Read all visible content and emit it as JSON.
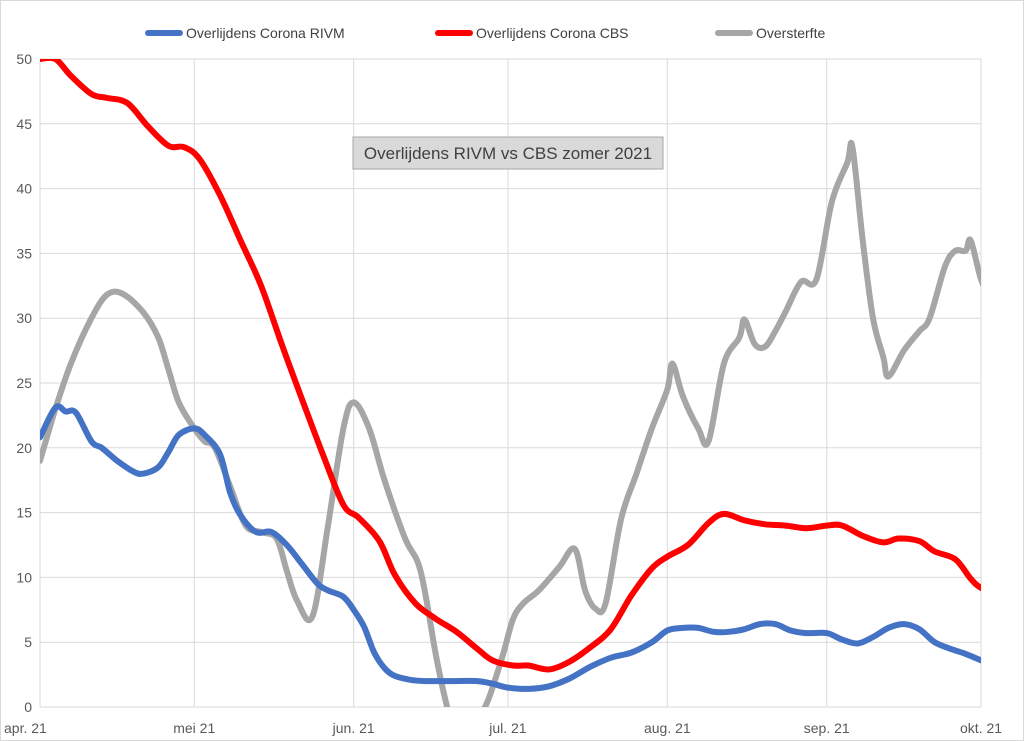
{
  "chart_data": {
    "type": "line",
    "annotation": "Overlijdens RIVM vs CBS zomer 2021",
    "ylim": [
      0,
      50
    ],
    "y_ticks": [
      "0",
      "5",
      "10",
      "15",
      "20",
      "25",
      "30",
      "35",
      "40",
      "45",
      "50"
    ],
    "x_range": [
      "2021-04-01",
      "2021-10-01"
    ],
    "x_ticks": [
      {
        "date": "2021-04-01",
        "label": "apr. 21"
      },
      {
        "date": "2021-05-01",
        "label": "mei 21"
      },
      {
        "date": "2021-06-01",
        "label": "jun. 21"
      },
      {
        "date": "2021-07-01",
        "label": "jul. 21"
      },
      {
        "date": "2021-08-01",
        "label": "aug. 21"
      },
      {
        "date": "2021-09-01",
        "label": "sep. 21"
      },
      {
        "date": "2021-10-01",
        "label": "okt. 21"
      }
    ],
    "grid": "vertical and horizontal",
    "legend_position": "top",
    "series": [
      {
        "name": "Overlijdens Corona RIVM",
        "color": "#4472c4",
        "points": [
          [
            "2021-04-01",
            20.8
          ],
          [
            "2021-04-04",
            23.1
          ],
          [
            "2021-04-06",
            22.8
          ],
          [
            "2021-04-08",
            22.7
          ],
          [
            "2021-04-11",
            20.5
          ],
          [
            "2021-04-13",
            20.0
          ],
          [
            "2021-04-16",
            19.0
          ],
          [
            "2021-04-19",
            18.2
          ],
          [
            "2021-04-21",
            18.0
          ],
          [
            "2021-04-24",
            18.5
          ],
          [
            "2021-04-26",
            19.7
          ],
          [
            "2021-04-28",
            21.0
          ],
          [
            "2021-05-01",
            21.5
          ],
          [
            "2021-05-03",
            21.0
          ],
          [
            "2021-05-06",
            19.5
          ],
          [
            "2021-05-08",
            16.5
          ],
          [
            "2021-05-10",
            14.8
          ],
          [
            "2021-05-13",
            13.5
          ],
          [
            "2021-05-16",
            13.5
          ],
          [
            "2021-05-19",
            12.5
          ],
          [
            "2021-05-22",
            11.0
          ],
          [
            "2021-05-25",
            9.5
          ],
          [
            "2021-05-27",
            9.0
          ],
          [
            "2021-05-30",
            8.5
          ],
          [
            "2021-06-01",
            7.5
          ],
          [
            "2021-06-03",
            6.2
          ],
          [
            "2021-06-05",
            4.2
          ],
          [
            "2021-06-07",
            3.0
          ],
          [
            "2021-06-09",
            2.4
          ],
          [
            "2021-06-12",
            2.1
          ],
          [
            "2021-06-15",
            2.0
          ],
          [
            "2021-06-20",
            2.0
          ],
          [
            "2021-06-25",
            2.0
          ],
          [
            "2021-06-28",
            1.8
          ],
          [
            "2021-07-01",
            1.5
          ],
          [
            "2021-07-05",
            1.4
          ],
          [
            "2021-07-09",
            1.6
          ],
          [
            "2021-07-13",
            2.2
          ],
          [
            "2021-07-17",
            3.1
          ],
          [
            "2021-07-21",
            3.8
          ],
          [
            "2021-07-25",
            4.2
          ],
          [
            "2021-07-29",
            5.0
          ],
          [
            "2021-08-01",
            5.9
          ],
          [
            "2021-08-04",
            6.1
          ],
          [
            "2021-08-07",
            6.1
          ],
          [
            "2021-08-10",
            5.8
          ],
          [
            "2021-08-13",
            5.8
          ],
          [
            "2021-08-16",
            6.0
          ],
          [
            "2021-08-19",
            6.4
          ],
          [
            "2021-08-22",
            6.4
          ],
          [
            "2021-08-25",
            5.9
          ],
          [
            "2021-08-28",
            5.7
          ],
          [
            "2021-09-01",
            5.7
          ],
          [
            "2021-09-04",
            5.2
          ],
          [
            "2021-09-07",
            4.9
          ],
          [
            "2021-09-10",
            5.4
          ],
          [
            "2021-09-13",
            6.1
          ],
          [
            "2021-09-16",
            6.4
          ],
          [
            "2021-09-19",
            6.0
          ],
          [
            "2021-09-22",
            5.0
          ],
          [
            "2021-09-25",
            4.5
          ],
          [
            "2021-09-28",
            4.1
          ],
          [
            "2021-10-01",
            3.6
          ]
        ]
      },
      {
        "name": "Overlijdens Corona CBS",
        "color": "#ff0000",
        "points": [
          [
            "2021-04-01",
            50.0
          ],
          [
            "2021-04-04",
            50.0
          ],
          [
            "2021-04-07",
            48.7
          ],
          [
            "2021-04-11",
            47.3
          ],
          [
            "2021-04-14",
            47.0
          ],
          [
            "2021-04-18",
            46.6
          ],
          [
            "2021-04-22",
            44.8
          ],
          [
            "2021-04-26",
            43.3
          ],
          [
            "2021-04-29",
            43.2
          ],
          [
            "2021-05-02",
            42.3
          ],
          [
            "2021-05-06",
            39.5
          ],
          [
            "2021-05-10",
            36.0
          ],
          [
            "2021-05-14",
            32.5
          ],
          [
            "2021-05-18",
            28.0
          ],
          [
            "2021-05-22",
            23.7
          ],
          [
            "2021-05-26",
            19.5
          ],
          [
            "2021-05-30",
            15.6
          ],
          [
            "2021-06-02",
            14.6
          ],
          [
            "2021-06-06",
            12.8
          ],
          [
            "2021-06-09",
            10.2
          ],
          [
            "2021-06-13",
            8.0
          ],
          [
            "2021-06-17",
            6.8
          ],
          [
            "2021-06-21",
            5.8
          ],
          [
            "2021-06-25",
            4.5
          ],
          [
            "2021-06-28",
            3.6
          ],
          [
            "2021-07-02",
            3.2
          ],
          [
            "2021-07-05",
            3.2
          ],
          [
            "2021-07-09",
            2.9
          ],
          [
            "2021-07-13",
            3.5
          ],
          [
            "2021-07-17",
            4.6
          ],
          [
            "2021-07-21",
            6.0
          ],
          [
            "2021-07-25",
            8.6
          ],
          [
            "2021-07-29",
            10.7
          ],
          [
            "2021-08-01",
            11.6
          ],
          [
            "2021-08-05",
            12.5
          ],
          [
            "2021-08-09",
            14.2
          ],
          [
            "2021-08-12",
            14.9
          ],
          [
            "2021-08-16",
            14.4
          ],
          [
            "2021-08-20",
            14.1
          ],
          [
            "2021-08-24",
            14.0
          ],
          [
            "2021-08-28",
            13.8
          ],
          [
            "2021-09-01",
            14.0
          ],
          [
            "2021-09-04",
            14.0
          ],
          [
            "2021-09-08",
            13.2
          ],
          [
            "2021-09-12",
            12.7
          ],
          [
            "2021-09-15",
            13.0
          ],
          [
            "2021-09-19",
            12.8
          ],
          [
            "2021-09-22",
            12.0
          ],
          [
            "2021-09-26",
            11.4
          ],
          [
            "2021-09-29",
            9.9
          ],
          [
            "2021-10-01",
            9.2
          ],
          [
            "2021-10-04",
            8.9
          ],
          [
            "2021-10-07",
            9.5
          ]
        ]
      },
      {
        "name": "Oversterfte",
        "color": "#a6a6a6",
        "points": [
          [
            "2021-04-01",
            19.0
          ],
          [
            "2021-04-04",
            23.0
          ],
          [
            "2021-04-07",
            26.5
          ],
          [
            "2021-04-11",
            30.0
          ],
          [
            "2021-04-14",
            31.8
          ],
          [
            "2021-04-17",
            31.9
          ],
          [
            "2021-04-21",
            30.5
          ],
          [
            "2021-04-24",
            28.5
          ],
          [
            "2021-04-26",
            26.0
          ],
          [
            "2021-04-28",
            23.5
          ],
          [
            "2021-05-01",
            21.5
          ],
          [
            "2021-05-03",
            20.5
          ],
          [
            "2021-05-05",
            20.0
          ],
          [
            "2021-05-08",
            17.0
          ],
          [
            "2021-05-11",
            14.0
          ],
          [
            "2021-05-14",
            13.5
          ],
          [
            "2021-05-17",
            13.0
          ],
          [
            "2021-05-19",
            10.5
          ],
          [
            "2021-05-21",
            8.2
          ],
          [
            "2021-05-24",
            7.0
          ],
          [
            "2021-05-27",
            14.0
          ],
          [
            "2021-05-30",
            21.5
          ],
          [
            "2021-06-01",
            23.5
          ],
          [
            "2021-06-04",
            21.5
          ],
          [
            "2021-06-07",
            17.5
          ],
          [
            "2021-06-11",
            13.0
          ],
          [
            "2021-06-14",
            10.5
          ],
          [
            "2021-06-17",
            4.0
          ],
          [
            "2021-06-19",
            0.3
          ],
          [
            "2021-06-20",
            -0.5
          ],
          [
            "2021-06-25",
            -0.5
          ],
          [
            "2021-06-27",
            0.4
          ],
          [
            "2021-06-30",
            4.0
          ],
          [
            "2021-07-02",
            6.8
          ],
          [
            "2021-07-04",
            8.0
          ],
          [
            "2021-07-07",
            9.0
          ],
          [
            "2021-07-11",
            10.8
          ],
          [
            "2021-07-14",
            12.2
          ],
          [
            "2021-07-16",
            9.0
          ],
          [
            "2021-07-18",
            7.6
          ],
          [
            "2021-07-20",
            8.0
          ],
          [
            "2021-07-23",
            14.5
          ],
          [
            "2021-07-26",
            18.0
          ],
          [
            "2021-07-29",
            21.5
          ],
          [
            "2021-08-01",
            24.5
          ],
          [
            "2021-08-02",
            26.5
          ],
          [
            "2021-08-04",
            24.0
          ],
          [
            "2021-08-07",
            21.5
          ],
          [
            "2021-08-09",
            20.5
          ],
          [
            "2021-08-12",
            26.5
          ],
          [
            "2021-08-15",
            28.5
          ],
          [
            "2021-08-16",
            29.9
          ],
          [
            "2021-08-18",
            28.0
          ],
          [
            "2021-08-20",
            27.8
          ],
          [
            "2021-08-22",
            29.0
          ],
          [
            "2021-08-24",
            30.5
          ],
          [
            "2021-08-27",
            32.8
          ],
          [
            "2021-08-30",
            33.0
          ],
          [
            "2021-09-02",
            39.0
          ],
          [
            "2021-09-05",
            42.0
          ],
          [
            "2021-09-06",
            43.2
          ],
          [
            "2021-09-08",
            36.0
          ],
          [
            "2021-09-10",
            30.0
          ],
          [
            "2021-09-12",
            27.0
          ],
          [
            "2021-09-13",
            25.5
          ],
          [
            "2021-09-16",
            27.5
          ],
          [
            "2021-09-19",
            29.0
          ],
          [
            "2021-09-21",
            30.0
          ],
          [
            "2021-09-24",
            34.0
          ],
          [
            "2021-09-26",
            35.2
          ],
          [
            "2021-09-28",
            35.2
          ],
          [
            "2021-09-29",
            36.0
          ],
          [
            "2021-10-01",
            33.0
          ],
          [
            "2021-10-03",
            31.5
          ],
          [
            "2021-10-05",
            31.2
          ]
        ]
      }
    ]
  }
}
